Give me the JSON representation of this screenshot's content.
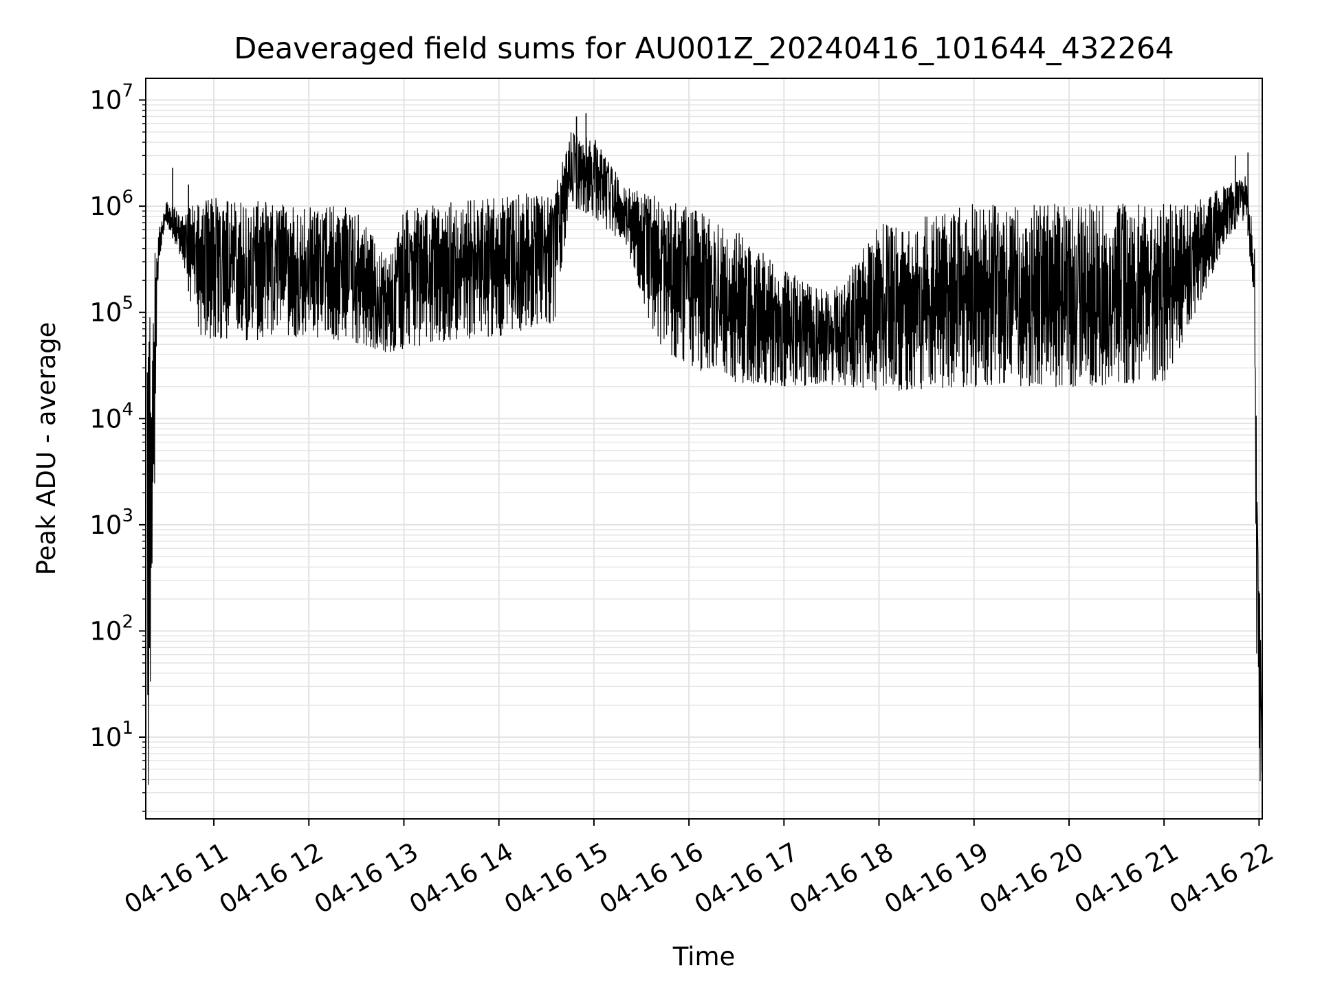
{
  "chart_data": {
    "type": "line",
    "title": "Deaveraged field sums for AU001Z_20240416_101644_432264",
    "xlabel": "Time",
    "ylabel": "Peak ADU - average",
    "yscale": "log",
    "ylim": [
      1.7,
      16000000
    ],
    "xlim": [
      "2024-04-16T10:17:00",
      "2024-04-16T22:02:00"
    ],
    "x_ticks": [
      "2024-04-16T11:00",
      "2024-04-16T12:00",
      "2024-04-16T13:00",
      "2024-04-16T14:00",
      "2024-04-16T15:00",
      "2024-04-16T16:00",
      "2024-04-16T17:00",
      "2024-04-16T18:00",
      "2024-04-16T19:00",
      "2024-04-16T20:00",
      "2024-04-16T21:00",
      "2024-04-16T22:00"
    ],
    "x_tick_labels": [
      "04-16 11",
      "04-16 12",
      "04-16 13",
      "04-16 14",
      "04-16 15",
      "04-16 16",
      "04-16 17",
      "04-16 18",
      "04-16 19",
      "04-16 20",
      "04-16 21",
      "04-16 22"
    ],
    "y_ticks": [
      10,
      100,
      1000,
      10000,
      100000,
      1000000,
      10000000
    ],
    "y_tick_labels": [
      {
        "base": "10",
        "exp": "1"
      },
      {
        "base": "10",
        "exp": "2"
      },
      {
        "base": "10",
        "exp": "3"
      },
      {
        "base": "10",
        "exp": "4"
      },
      {
        "base": "10",
        "exp": "5"
      },
      {
        "base": "10",
        "exp": "6"
      },
      {
        "base": "10",
        "exp": "7"
      }
    ],
    "grid": true,
    "line_color": "#000000",
    "series": [
      {
        "style": "dense oscillating trace between a lower envelope and an upper envelope",
        "points": [
          {
            "x": "2024-04-16T10:18:00",
            "low": 1.8,
            "high": 80000
          },
          {
            "x": "2024-04-16T10:20:00",
            "low": 3.5,
            "high": 200000
          },
          {
            "x": "2024-04-16T10:25:00",
            "low": 300000,
            "high": 600000
          },
          {
            "x": "2024-04-16T10:30:00",
            "low": 700000,
            "high": 1100000
          },
          {
            "x": "2024-04-16T10:40:00",
            "low": 300000,
            "high": 900000
          },
          {
            "x": "2024-04-16T10:50:00",
            "low": 60000,
            "high": 1100000
          },
          {
            "x": "2024-04-16T11:00:00",
            "low": 55000,
            "high": 1200000
          },
          {
            "x": "2024-04-16T11:30:00",
            "low": 55000,
            "high": 1100000
          },
          {
            "x": "2024-04-16T12:00:00",
            "low": 60000,
            "high": 1050000
          },
          {
            "x": "2024-04-16T12:30:00",
            "low": 50000,
            "high": 1000000
          },
          {
            "x": "2024-04-16T12:50:00",
            "low": 42000,
            "high": 300000
          },
          {
            "x": "2024-04-16T13:00:00",
            "low": 45000,
            "high": 900000
          },
          {
            "x": "2024-04-16T13:30:00",
            "low": 55000,
            "high": 1100000
          },
          {
            "x": "2024-04-16T14:00:00",
            "low": 60000,
            "high": 1250000
          },
          {
            "x": "2024-04-16T14:35:00",
            "low": 80000,
            "high": 1400000
          },
          {
            "x": "2024-04-16T14:45:00",
            "low": 1000000,
            "high": 5000000
          },
          {
            "x": "2024-04-16T15:00:00",
            "low": 800000,
            "high": 4500000
          },
          {
            "x": "2024-04-16T15:20:00",
            "low": 400000,
            "high": 1500000
          },
          {
            "x": "2024-04-16T15:40:00",
            "low": 50000,
            "high": 1250000
          },
          {
            "x": "2024-04-16T16:00:00",
            "low": 30000,
            "high": 1000000
          },
          {
            "x": "2024-04-16T16:30:00",
            "low": 22000,
            "high": 600000
          },
          {
            "x": "2024-04-16T17:00:00",
            "low": 20000,
            "high": 250000
          },
          {
            "x": "2024-04-16T17:30:00",
            "low": 21000,
            "high": 150000
          },
          {
            "x": "2024-04-16T18:00:00",
            "low": 18000,
            "high": 700000
          },
          {
            "x": "2024-04-16T18:30:00",
            "low": 19000,
            "high": 800000
          },
          {
            "x": "2024-04-16T19:00:00",
            "low": 20000,
            "high": 1050000
          },
          {
            "x": "2024-04-16T19:30:00",
            "low": 20000,
            "high": 1050000
          },
          {
            "x": "2024-04-16T20:00:00",
            "low": 20000,
            "high": 1050000
          },
          {
            "x": "2024-04-16T20:30:00",
            "low": 21000,
            "high": 1050000
          },
          {
            "x": "2024-04-16T21:00:00",
            "low": 22000,
            "high": 1050000
          },
          {
            "x": "2024-04-16T21:20:00",
            "low": 100000,
            "high": 1100000
          },
          {
            "x": "2024-04-16T21:40:00",
            "low": 500000,
            "high": 1600000
          },
          {
            "x": "2024-04-16T21:52:00",
            "low": 800000,
            "high": 2000000
          },
          {
            "x": "2024-04-16T21:57:00",
            "low": 100000,
            "high": 500000
          },
          {
            "x": "2024-04-16T21:59:00",
            "low": 3.8,
            "high": 20000
          },
          {
            "x": "2024-04-16T22:02:00",
            "low": 3.8,
            "high": 4.5
          }
        ],
        "spikes": [
          {
            "x": "2024-04-16T10:34:00",
            "value": 2300000
          },
          {
            "x": "2024-04-16T10:44:00",
            "value": 1600000
          },
          {
            "x": "2024-04-16T14:49:00",
            "value": 7000000
          },
          {
            "x": "2024-04-16T14:55:00",
            "value": 7500000
          },
          {
            "x": "2024-04-16T21:45:00",
            "value": 3000000
          },
          {
            "x": "2024-04-16T21:53:00",
            "value": 3200000
          }
        ]
      }
    ]
  }
}
